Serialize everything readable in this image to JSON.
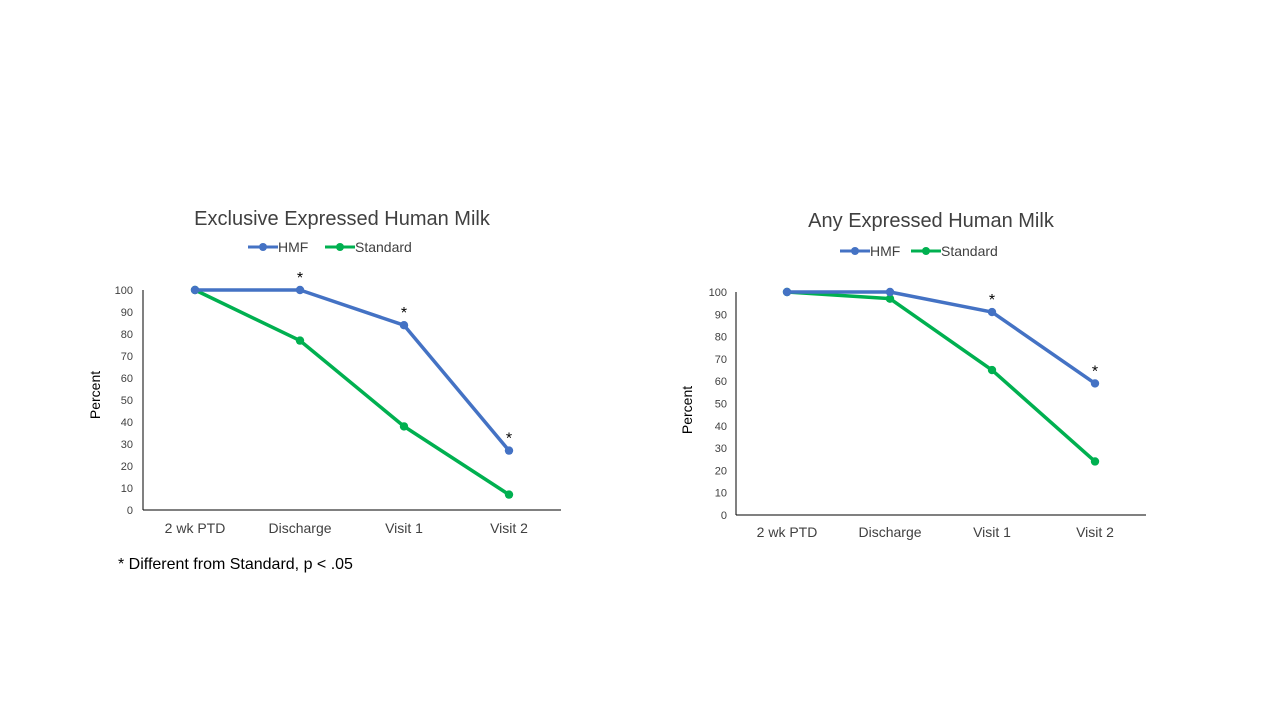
{
  "colors": {
    "HMF": "#4472C4",
    "Standard": "#00B050"
  },
  "footnote": "* Different from Standard, p < .05",
  "chart_data": [
    {
      "type": "line",
      "title": "Exclusive Expressed Human Milk",
      "ylabel": "Percent",
      "xlabel": "",
      "categories": [
        "2 wk PTD",
        "Discharge",
        "Visit 1",
        "Visit 2"
      ],
      "series": [
        {
          "name": "HMF",
          "values": [
            100,
            100,
            84,
            27
          ]
        },
        {
          "name": "Standard",
          "values": [
            100,
            77,
            38,
            7
          ]
        }
      ],
      "significant": [
        "",
        "*",
        "*",
        "*"
      ],
      "ylim": [
        0,
        100
      ],
      "yticks": [
        0,
        10,
        20,
        30,
        40,
        50,
        60,
        70,
        80,
        90,
        100
      ],
      "legend": "top",
      "grid": false
    },
    {
      "type": "line",
      "title": "Any Expressed Human Milk",
      "ylabel": "Percent",
      "xlabel": "",
      "categories": [
        "2 wk PTD",
        "Discharge",
        "Visit 1",
        "Visit 2"
      ],
      "series": [
        {
          "name": "HMF",
          "values": [
            100,
            100,
            91,
            59
          ]
        },
        {
          "name": "Standard",
          "values": [
            100,
            97,
            65,
            24
          ]
        }
      ],
      "significant": [
        "",
        "",
        "*",
        "*"
      ],
      "ylim": [
        0,
        100
      ],
      "yticks": [
        0,
        10,
        20,
        30,
        40,
        50,
        60,
        70,
        80,
        90,
        100
      ],
      "legend": "top",
      "grid": false
    }
  ]
}
